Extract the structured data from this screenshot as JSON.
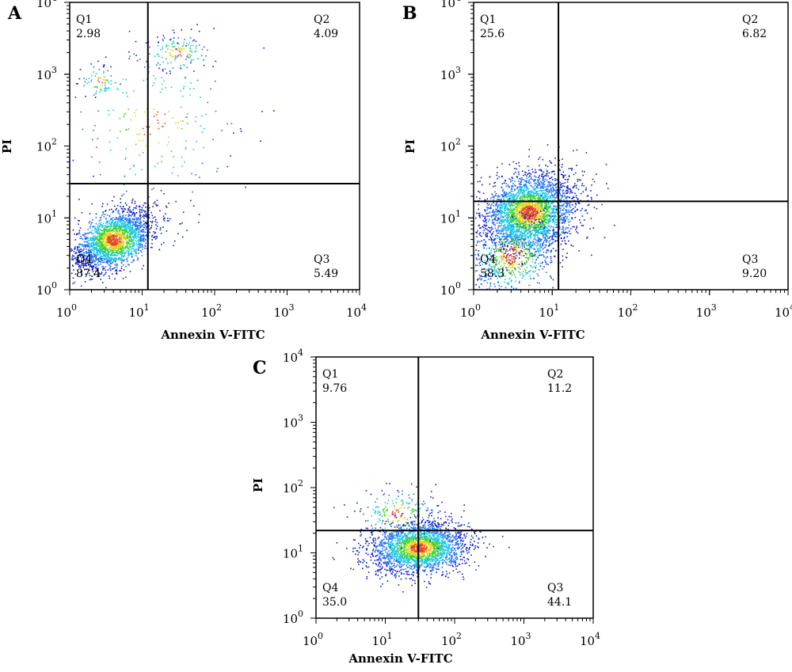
{
  "chart_data": [
    {
      "type": "scatter",
      "panel_label": "A",
      "xlabel": "Annexin V-FITC",
      "ylabel": "PI",
      "xscale": "log",
      "yscale": "log",
      "xlim": [
        1,
        10000
      ],
      "ylim": [
        1,
        10000
      ],
      "x_ticks": [
        {
          "base": "10",
          "exp": "0"
        },
        {
          "base": "10",
          "exp": "1"
        },
        {
          "base": "10",
          "exp": "2"
        },
        {
          "base": "10",
          "exp": "3"
        },
        {
          "base": "10",
          "exp": "4"
        }
      ],
      "y_ticks": [
        {
          "base": "10",
          "exp": "0"
        },
        {
          "base": "10",
          "exp": "1"
        },
        {
          "base": "10",
          "exp": "2"
        },
        {
          "base": "10",
          "exp": "3"
        },
        {
          "base": "10",
          "exp": "4"
        }
      ],
      "gate": {
        "x": 12,
        "y": 30
      },
      "quadrants": [
        {
          "name": "Q1",
          "value": "2.98",
          "corner": "top-left"
        },
        {
          "name": "Q2",
          "value": "4.09",
          "corner": "top-right"
        },
        {
          "name": "Q3",
          "value": "5.49",
          "corner": "bottom-right"
        },
        {
          "name": "Q4",
          "value": "87.4",
          "corner": "bottom-left"
        }
      ],
      "populations": [
        {
          "cx": 4,
          "cy": 5,
          "sx": 0.28,
          "sy": 0.22,
          "rho": 0.5,
          "n": 2200
        },
        {
          "cx": 30,
          "cy": 2000,
          "sx": 0.25,
          "sy": 0.14,
          "rho": 0,
          "n": 140
        },
        {
          "cx": 2.5,
          "cy": 800,
          "sx": 0.14,
          "sy": 0.12,
          "rho": 0,
          "n": 70
        },
        {
          "cx": 15,
          "cy": 200,
          "sx": 0.6,
          "sy": 0.6,
          "rho": 0,
          "n": 220
        }
      ]
    },
    {
      "type": "scatter",
      "panel_label": "B",
      "xlabel": "Annexin V-FITC",
      "ylabel": "PI",
      "xscale": "log",
      "yscale": "log",
      "xlim": [
        1,
        10000
      ],
      "ylim": [
        1,
        10000
      ],
      "x_ticks": [
        {
          "base": "10",
          "exp": "0"
        },
        {
          "base": "10",
          "exp": "1"
        },
        {
          "base": "10",
          "exp": "2"
        },
        {
          "base": "10",
          "exp": "3"
        },
        {
          "base": "10",
          "exp": "4"
        }
      ],
      "y_ticks": [
        {
          "base": "10",
          "exp": "0"
        },
        {
          "base": "10",
          "exp": "1"
        },
        {
          "base": "10",
          "exp": "2"
        },
        {
          "base": "10",
          "exp": "3"
        },
        {
          "base": "10",
          "exp": "4"
        }
      ],
      "gate": {
        "x": 12,
        "y": 17
      },
      "quadrants": [
        {
          "name": "Q1",
          "value": "25.6",
          "corner": "top-left"
        },
        {
          "name": "Q2",
          "value": "6.82",
          "corner": "top-right"
        },
        {
          "name": "Q3",
          "value": "9.20",
          "corner": "bottom-right"
        },
        {
          "name": "Q4",
          "value": "58.3",
          "corner": "bottom-left"
        }
      ],
      "populations": [
        {
          "cx": 5,
          "cy": 12,
          "sx": 0.3,
          "sy": 0.28,
          "rho": 0.2,
          "n": 3000
        },
        {
          "cx": 3,
          "cy": 3,
          "sx": 0.3,
          "sy": 0.3,
          "rho": 0.5,
          "n": 700
        }
      ]
    },
    {
      "type": "scatter",
      "panel_label": "C",
      "xlabel": "Annexin V-FITC",
      "ylabel": "PI",
      "xscale": "log",
      "yscale": "log",
      "xlim": [
        1,
        10000
      ],
      "ylim": [
        1,
        10000
      ],
      "x_ticks": [
        {
          "base": "10",
          "exp": "0"
        },
        {
          "base": "10",
          "exp": "1"
        },
        {
          "base": "10",
          "exp": "2"
        },
        {
          "base": "10",
          "exp": "3"
        },
        {
          "base": "10",
          "exp": "4"
        }
      ],
      "y_ticks": [
        {
          "base": "10",
          "exp": "0"
        },
        {
          "base": "10",
          "exp": "1"
        },
        {
          "base": "10",
          "exp": "2"
        },
        {
          "base": "10",
          "exp": "3"
        },
        {
          "base": "10",
          "exp": "4"
        }
      ],
      "gate": {
        "x": 30,
        "y": 22
      },
      "quadrants": [
        {
          "name": "Q1",
          "value": "9.76",
          "corner": "top-left"
        },
        {
          "name": "Q2",
          "value": "11.2",
          "corner": "top-right"
        },
        {
          "name": "Q3",
          "value": "44.1",
          "corner": "bottom-right"
        },
        {
          "name": "Q4",
          "value": "35.0",
          "corner": "bottom-left"
        }
      ],
      "populations": [
        {
          "cx": 30,
          "cy": 12,
          "sx": 0.35,
          "sy": 0.2,
          "rho": 0.1,
          "n": 2300
        },
        {
          "cx": 15,
          "cy": 40,
          "sx": 0.3,
          "sy": 0.2,
          "rho": 0,
          "n": 200
        }
      ]
    }
  ],
  "colors": {
    "axis": "#000000",
    "density": [
      "#0a1dc8",
      "#1f6ff0",
      "#19c8e6",
      "#3ad23a",
      "#e6d21e",
      "#e6461e"
    ]
  }
}
